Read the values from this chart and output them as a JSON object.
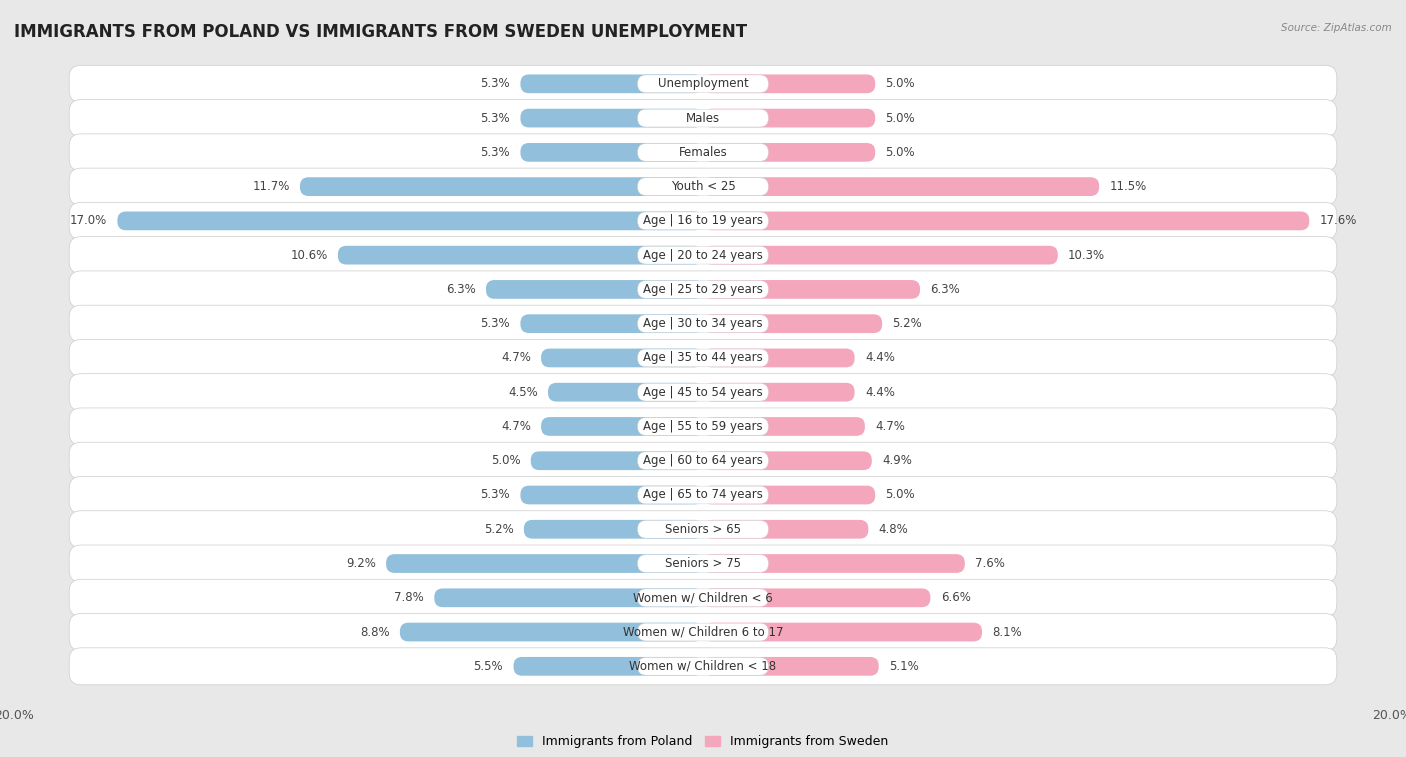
{
  "title": "IMMIGRANTS FROM POLAND VS IMMIGRANTS FROM SWEDEN UNEMPLOYMENT",
  "source": "Source: ZipAtlas.com",
  "categories": [
    "Unemployment",
    "Males",
    "Females",
    "Youth < 25",
    "Age | 16 to 19 years",
    "Age | 20 to 24 years",
    "Age | 25 to 29 years",
    "Age | 30 to 34 years",
    "Age | 35 to 44 years",
    "Age | 45 to 54 years",
    "Age | 55 to 59 years",
    "Age | 60 to 64 years",
    "Age | 65 to 74 years",
    "Seniors > 65",
    "Seniors > 75",
    "Women w/ Children < 6",
    "Women w/ Children 6 to 17",
    "Women w/ Children < 18"
  ],
  "poland_values": [
    5.3,
    5.3,
    5.3,
    11.7,
    17.0,
    10.6,
    6.3,
    5.3,
    4.7,
    4.5,
    4.7,
    5.0,
    5.3,
    5.2,
    9.2,
    7.8,
    8.8,
    5.5
  ],
  "sweden_values": [
    5.0,
    5.0,
    5.0,
    11.5,
    17.6,
    10.3,
    6.3,
    5.2,
    4.4,
    4.4,
    4.7,
    4.9,
    5.0,
    4.8,
    7.6,
    6.6,
    8.1,
    5.1
  ],
  "poland_color": "#92c0dc",
  "sweden_color": "#f4a6bc",
  "poland_label": "Immigrants from Poland",
  "sweden_label": "Immigrants from Sweden",
  "axis_max": 20.0,
  "background_color": "#e8e8e8",
  "row_light": "#f5f5f5",
  "row_dark": "#e0e0e0",
  "title_fontsize": 12,
  "label_fontsize": 8.5,
  "value_fontsize": 8.5
}
